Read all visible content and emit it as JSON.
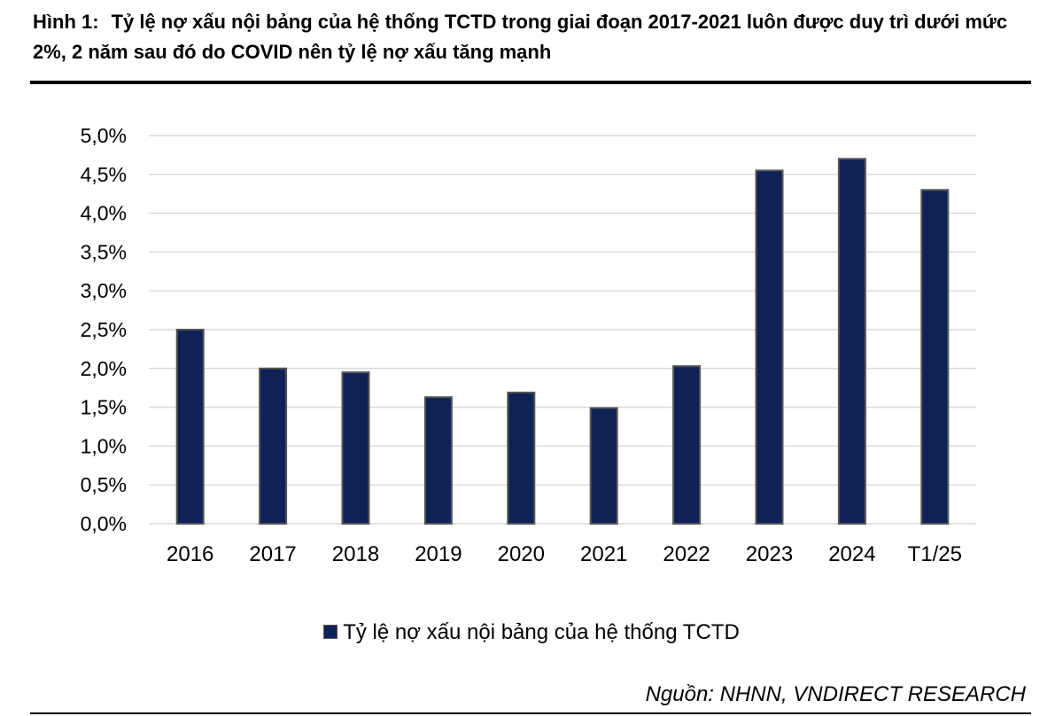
{
  "figure": {
    "label": "Hình 1:",
    "title": "Tỷ lệ nợ xấu nội bảng của hệ thống TCTD trong giai đoạn 2017-2021 luôn được duy trì dưới mức 2%, 2 năm sau đó do COVID nên tỷ lệ nợ xấu tăng mạnh",
    "source": "Nguồn: NHNN, VNDIRECT RESEARCH"
  },
  "colors": {
    "bar": "#0f2257",
    "bar_border": "#555555",
    "grid": "#d9d9d9"
  },
  "chart_data": {
    "type": "bar",
    "categories": [
      "2016",
      "2017",
      "2018",
      "2019",
      "2020",
      "2021",
      "2022",
      "2023",
      "2024",
      "T1/25"
    ],
    "series": [
      {
        "name": "Tỷ lệ nợ xấu nội bảng của hệ thống TCTD",
        "values": [
          2.5,
          2.0,
          1.95,
          1.63,
          1.69,
          1.49,
          2.03,
          4.55,
          4.7,
          4.3
        ]
      }
    ],
    "yticks": [
      "0,0%",
      "0,5%",
      "1,0%",
      "1,5%",
      "2,0%",
      "2,5%",
      "3,0%",
      "3,5%",
      "4,0%",
      "4,5%",
      "5,0%"
    ],
    "ylim": [
      0,
      5
    ],
    "grid": true,
    "legend_position": "bottom"
  }
}
